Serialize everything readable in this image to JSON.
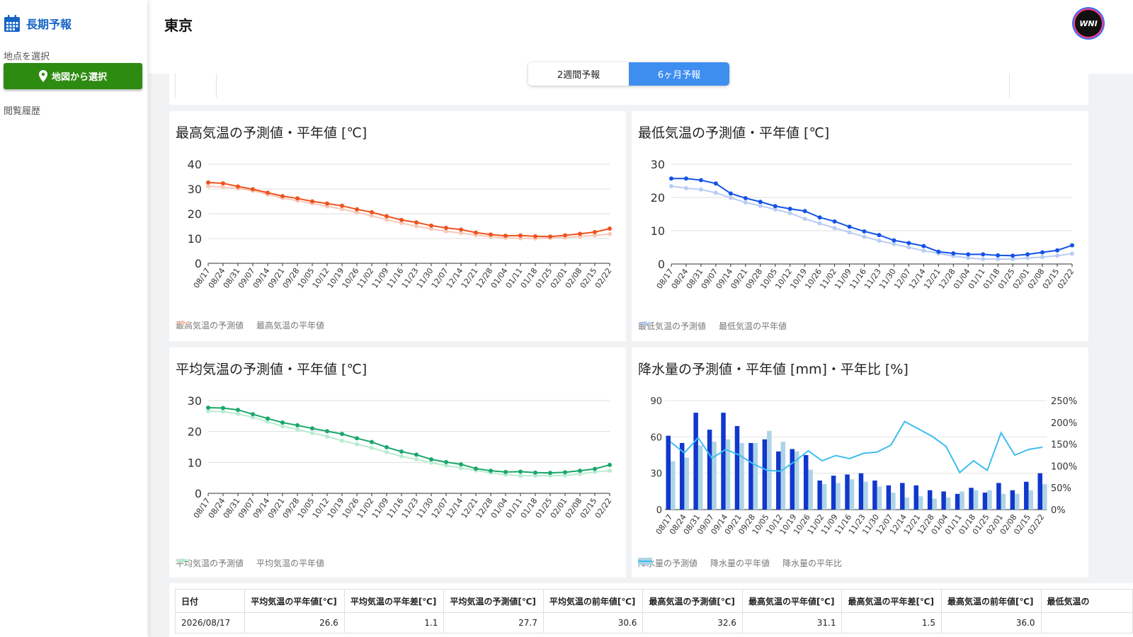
{
  "sidebar": {
    "title": "長期予報",
    "select_location_label": "地点を選択",
    "map_button_label": "地図から選択",
    "history_label": "閲覧履歴"
  },
  "header": {
    "location": "東京",
    "avatar_text": "WNI"
  },
  "tabs": [
    {
      "label": "2週間予報",
      "active": false
    },
    {
      "label": "6ヶ月予報",
      "active": true
    }
  ],
  "categories": [
    "08/17",
    "08/24",
    "08/31",
    "09/07",
    "09/14",
    "09/21",
    "09/28",
    "10/05",
    "10/12",
    "10/19",
    "10/26",
    "11/02",
    "11/09",
    "11/16",
    "11/23",
    "11/30",
    "12/07",
    "12/14",
    "12/21",
    "12/28",
    "01/04",
    "01/11",
    "01/18",
    "01/25",
    "02/01",
    "02/08",
    "02/15",
    "02/22"
  ],
  "chart_data": [
    {
      "id": "max",
      "type": "line",
      "title": "最高気温の予測値・平年値 [℃]",
      "ylim": [
        0,
        40
      ],
      "yticks": [
        0,
        10,
        20,
        30,
        40
      ],
      "series": [
        {
          "name": "最高気温の予測値",
          "color": "#f0521e",
          "values": [
            32.6,
            32.3,
            31.0,
            29.9,
            28.5,
            27.1,
            26.2,
            25.0,
            24.1,
            23.2,
            21.8,
            20.6,
            19.0,
            17.5,
            16.5,
            15.2,
            14.3,
            13.6,
            12.4,
            11.6,
            11.1,
            11.2,
            10.9,
            10.8,
            11.3,
            11.9,
            12.6,
            14.0
          ]
        },
        {
          "name": "最高気温の平年値",
          "color": "#f7c9b8",
          "values": [
            31.1,
            30.8,
            30.2,
            29.3,
            27.8,
            26.3,
            25.3,
            24.2,
            23.0,
            21.9,
            20.5,
            19.2,
            17.6,
            16.2,
            15.0,
            13.9,
            12.9,
            12.2,
            11.4,
            10.8,
            10.3,
            10.1,
            10.0,
            10.2,
            10.4,
            10.8,
            11.3,
            11.8
          ]
        }
      ]
    },
    {
      "id": "min",
      "type": "line",
      "title": "最低気温の予測値・平年値 [℃]",
      "ylim": [
        0,
        30
      ],
      "yticks": [
        0,
        10,
        20,
        30
      ],
      "series": [
        {
          "name": "最低気温の予測値",
          "color": "#1452e8",
          "values": [
            25.7,
            25.7,
            25.2,
            24.2,
            21.2,
            19.8,
            18.7,
            17.4,
            16.6,
            15.9,
            14.0,
            12.8,
            11.2,
            9.8,
            8.7,
            7.1,
            6.3,
            5.4,
            3.7,
            3.2,
            2.9,
            2.9,
            2.6,
            2.5,
            2.9,
            3.5,
            4.1,
            5.6
          ]
        },
        {
          "name": "最低気温の平年値",
          "color": "#b9ccf5",
          "values": [
            23.4,
            22.8,
            22.4,
            21.4,
            19.9,
            18.5,
            17.5,
            16.4,
            15.3,
            13.6,
            12.2,
            10.8,
            9.5,
            8.2,
            7.0,
            6.0,
            5.0,
            4.0,
            3.2,
            2.4,
            1.8,
            1.5,
            1.5,
            1.5,
            1.8,
            2.1,
            2.5,
            3.1
          ]
        }
      ]
    },
    {
      "id": "avg",
      "type": "line",
      "title": "平均気温の予測値・平年値 [℃]",
      "ylim": [
        0,
        30
      ],
      "yticks": [
        0,
        10,
        20,
        30
      ],
      "series": [
        {
          "name": "平均気温の予測値",
          "color": "#1aa76a",
          "values": [
            27.7,
            27.6,
            27.0,
            25.6,
            24.2,
            22.9,
            22.0,
            21.0,
            20.1,
            19.2,
            17.8,
            16.6,
            14.9,
            13.5,
            12.5,
            11.0,
            10.1,
            9.4,
            8.0,
            7.3,
            6.9,
            7.0,
            6.7,
            6.6,
            6.8,
            7.3,
            7.9,
            9.2
          ]
        },
        {
          "name": "平均気温の平年値",
          "color": "#b9ecd2",
          "values": [
            26.6,
            26.4,
            25.7,
            24.6,
            23.2,
            21.7,
            20.7,
            19.5,
            18.4,
            17.0,
            15.9,
            14.7,
            13.3,
            12.0,
            11.0,
            9.9,
            9.0,
            8.2,
            7.4,
            6.6,
            6.0,
            5.7,
            5.7,
            5.7,
            5.8,
            6.3,
            6.9,
            7.3
          ]
        }
      ]
    },
    {
      "id": "rain",
      "type": "bar+line",
      "title": "降水量の予測値・平年値 [mm]・平年比 [%]",
      "ylim": [
        0,
        90
      ],
      "yticks": [
        0,
        30,
        60,
        90
      ],
      "y2lim": [
        0,
        250
      ],
      "y2ticks": [
        "0%",
        "50%",
        "100%",
        "150%",
        "200%",
        "250%"
      ],
      "series": [
        {
          "name": "降水量の予測値",
          "color": "#1038cc",
          "kind": "bar",
          "values": [
            61,
            55,
            80,
            66,
            80,
            69,
            55,
            58,
            48,
            50,
            45,
            24,
            28,
            29,
            30,
            24,
            20,
            22,
            20,
            16,
            15,
            13,
            18,
            14,
            22,
            16,
            23,
            30
          ]
        },
        {
          "name": "降水量の平年値",
          "color": "#add4e6",
          "kind": "bar",
          "values": [
            40,
            43,
            53,
            56,
            58,
            55,
            55,
            65,
            56,
            48,
            33,
            21,
            22,
            25,
            23,
            19,
            14,
            10,
            11,
            9,
            10,
            15,
            16,
            16,
            13,
            13,
            16,
            21
          ]
        },
        {
          "name": "降水量の平年比",
          "color": "#3ebdf0",
          "kind": "line",
          "values": [
            155,
            130,
            165,
            118,
            138,
            125,
            105,
            90,
            88,
            110,
            135,
            112,
            124,
            117,
            129,
            132,
            148,
            202,
            185,
            168,
            145,
            85,
            112,
            90,
            176,
            125,
            138,
            143
          ]
        }
      ]
    }
  ],
  "table": {
    "headers": [
      "日付",
      "平均気温の平年値[℃]",
      "平均気温の平年差[℃]",
      "平均気温の予測値[℃]",
      "平均気温の前年値[℃]",
      "最高気温の予測値[℃]",
      "最高気温の平年値[℃]",
      "最高気温の平年差[℃]",
      "最高気温の前年値[℃]",
      "最低気温の"
    ],
    "rows": [
      [
        "2026/08/17",
        "26.6",
        "1.1",
        "27.7",
        "30.6",
        "32.6",
        "31.1",
        "1.5",
        "36.0",
        ""
      ]
    ]
  }
}
